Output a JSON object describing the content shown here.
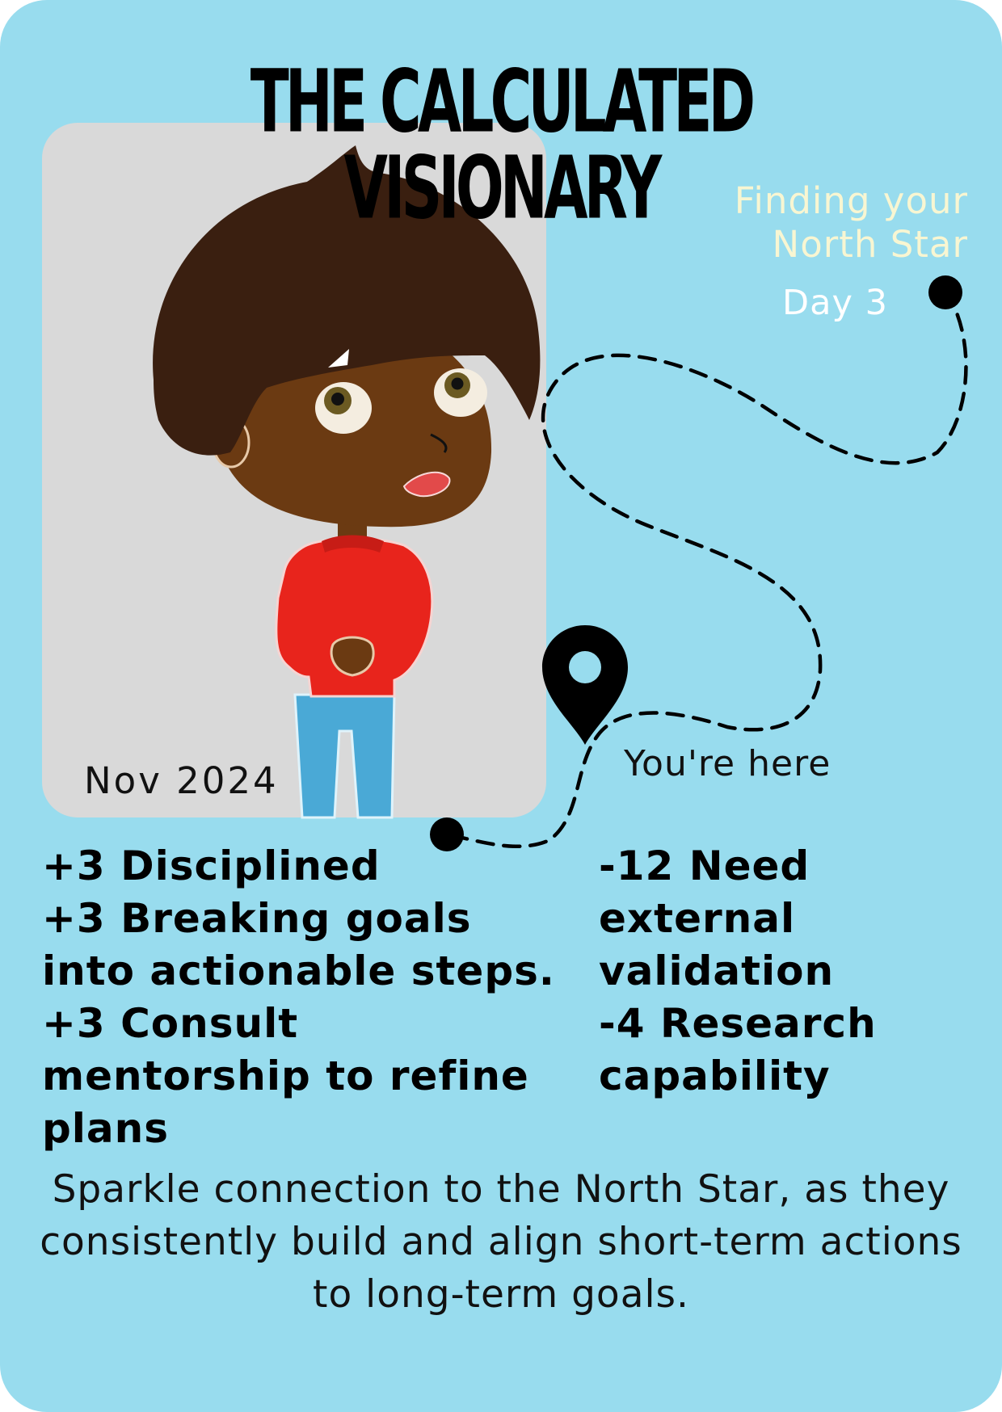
{
  "card": {
    "title": "THE CALCULATED VISIONARY",
    "subtitle_lines": [
      "Finding your",
      "North Star"
    ],
    "day": "Day 3",
    "date": "Nov 2024",
    "location_label": "You're here"
  },
  "strengths": [
    "+3 Disciplined",
    "+3 Breaking goals into actionable steps.",
    "+3 Consult mentorship to refine plans"
  ],
  "weaknesses": [
    "-12 Need external validation",
    "-4 Research capability"
  ],
  "summary": "Sparkle connection to the North Star, as they consistently build and align short-term actions to long-term goals.",
  "colors": {
    "background": "#98dcee",
    "panel": "#d9d9d9",
    "subtitle": "#f8f6d2",
    "hair": "#3a1f10",
    "skin": "#6b3a12",
    "sweater": "#e8241c",
    "jeans": "#4aa9d6"
  },
  "icons": [
    "map-pin-icon",
    "path-start-dot-icon",
    "path-end-dot-icon"
  ]
}
